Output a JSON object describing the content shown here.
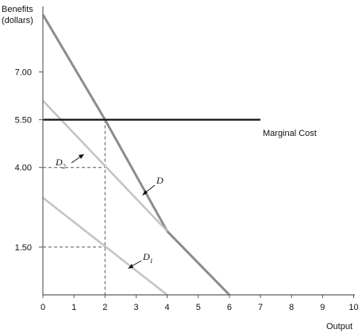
{
  "chart_data": {
    "type": "line",
    "ylabel_line1": "Benefits",
    "ylabel_line2": "(dollars)",
    "xlabel": "Output",
    "x_ticks": [
      0,
      1,
      2,
      3,
      4,
      5,
      6,
      7,
      8,
      9,
      10
    ],
    "y_ticks": [
      {
        "value": 1.5,
        "label": "1.50"
      },
      {
        "value": 4.0,
        "label": "4.00"
      },
      {
        "value": 5.5,
        "label": "5.50"
      },
      {
        "value": 7.0,
        "label": "7.00"
      }
    ],
    "xlim": [
      0,
      10
    ],
    "ylim": [
      0,
      9.06
    ],
    "series": [
      {
        "name": "D",
        "color": "#8c8c8c",
        "points": [
          [
            0,
            8.8
          ],
          [
            2,
            5.5
          ],
          [
            4,
            2.0
          ],
          [
            6,
            0
          ]
        ]
      },
      {
        "name": "D2",
        "name_main": "D",
        "name_sub": "2",
        "color": "#c4c4c4",
        "points": [
          [
            0,
            6.1
          ],
          [
            4,
            2.0
          ]
        ]
      },
      {
        "name": "D1",
        "name_main": "D",
        "name_sub": "1",
        "color": "#c4c4c4",
        "points": [
          [
            0,
            3.05
          ],
          [
            4,
            0
          ]
        ]
      }
    ],
    "marginal_cost": {
      "label": "Marginal Cost",
      "value": 5.5,
      "x_range": [
        0,
        7
      ]
    },
    "guides": [
      {
        "x": 2,
        "y": 4.0
      },
      {
        "x": 2,
        "y": 1.5
      }
    ],
    "vertical_guide": {
      "x": 2,
      "y_top": 5.5
    }
  }
}
